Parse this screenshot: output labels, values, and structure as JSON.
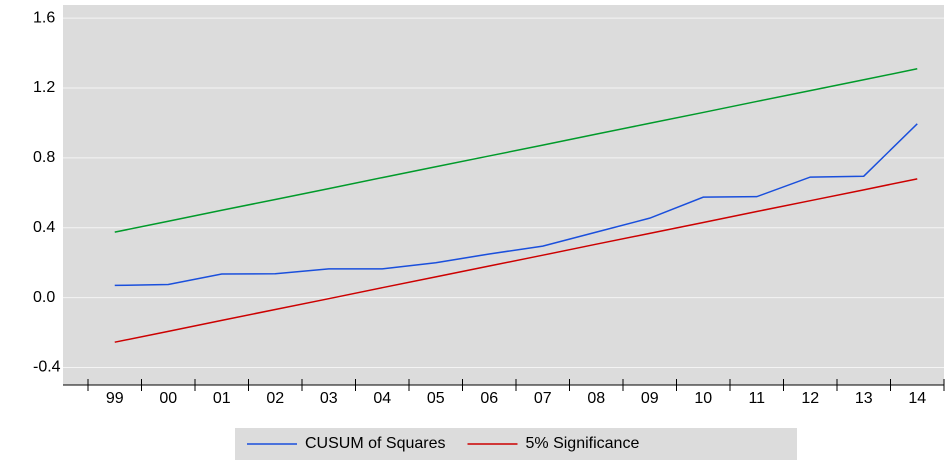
{
  "chart_data": {
    "type": "line",
    "categories": [
      "99",
      "00",
      "01",
      "02",
      "03",
      "04",
      "05",
      "06",
      "07",
      "08",
      "09",
      "10",
      "11",
      "12",
      "13",
      "14"
    ],
    "series": [
      {
        "name": "CUSUM of Squares",
        "color": "#1a4fdc",
        "values": [
          0.07,
          0.075,
          0.135,
          0.137,
          0.165,
          0.165,
          0.2,
          0.25,
          0.295,
          0.375,
          0.455,
          0.575,
          0.578,
          0.69,
          0.695,
          0.995
        ]
      },
      {
        "name": "5% Significance",
        "color": "#cc0000",
        "values": [
          -0.255,
          -0.193,
          -0.13,
          -0.068,
          -0.006,
          0.057,
          0.119,
          0.181,
          0.243,
          0.306,
          0.368,
          0.43,
          0.493,
          0.555,
          0.617,
          0.68
        ]
      },
      {
        "color": "#009a2a",
        "values": [
          0.375,
          0.437,
          0.5,
          0.562,
          0.624,
          0.687,
          0.749,
          0.811,
          0.873,
          0.936,
          0.998,
          1.06,
          1.123,
          1.185,
          1.247,
          1.31
        ]
      }
    ],
    "ylim": [
      -0.5,
      1.675
    ],
    "yticks": [
      {
        "value": -0.4,
        "label": "-0.4"
      },
      {
        "value": 0,
        "label": "0.0"
      },
      {
        "value": 0.4,
        "label": "0.4"
      },
      {
        "value": 0.8,
        "label": "0.8"
      },
      {
        "value": 1.2,
        "label": "1.2"
      },
      {
        "value": 1.6,
        "label": "1.6"
      }
    ],
    "grid": true,
    "legend": "bottom"
  }
}
